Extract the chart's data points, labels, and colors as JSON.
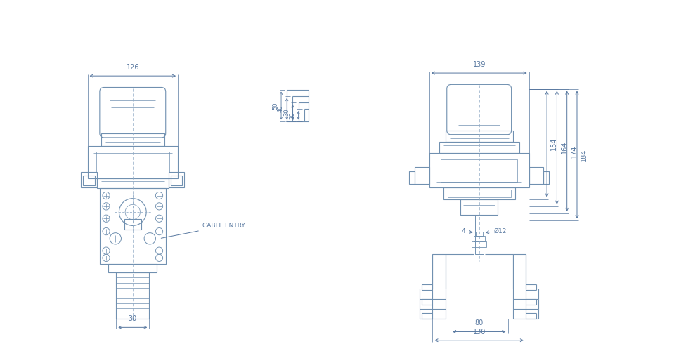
{
  "bg_color": "#ffffff",
  "lc": "#7090b0",
  "dc": "#5878a0",
  "dim_126": "126",
  "dim_30": "30",
  "dim_139": "139",
  "dim_154": "154",
  "dim_164": "164",
  "dim_174": "174",
  "dim_184": "184",
  "dim_80": "80",
  "dim_130": "130",
  "dim_50": "50",
  "dim_40": "40",
  "dim_30b": "30",
  "dim_20": "20",
  "dim_4": "4",
  "dim_phi12": "Ø12",
  "cable_entry": "CABLE ENTRY",
  "lw": 0.8,
  "fontsize": 7
}
